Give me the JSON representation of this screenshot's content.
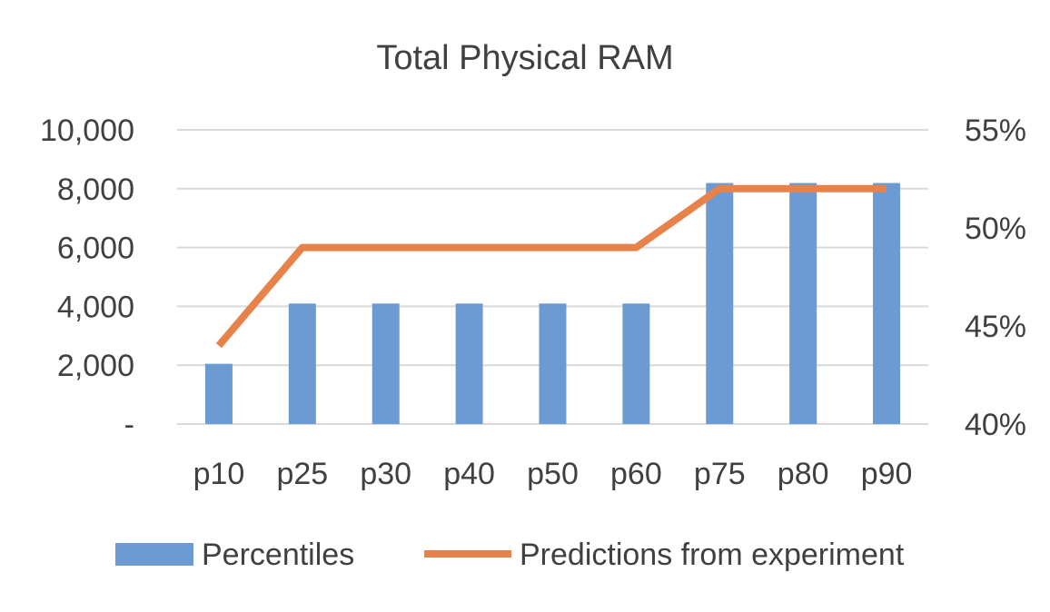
{
  "chart_data": {
    "type": "bar",
    "title": "Total Physical RAM",
    "categories": [
      "p10",
      "p25",
      "p30",
      "p40",
      "p50",
      "p60",
      "p75",
      "p80",
      "p90"
    ],
    "series": [
      {
        "name": "Percentiles",
        "type": "bar",
        "axis": "left",
        "color": "#6b9bd2",
        "values": [
          2048,
          4096,
          4096,
          4096,
          4096,
          4096,
          8192,
          8192,
          8192
        ]
      },
      {
        "name": "Predictions from experiment",
        "type": "line",
        "axis": "right",
        "color": "#e7834a",
        "values": [
          0.44,
          0.49,
          0.49,
          0.49,
          0.49,
          0.49,
          0.52,
          0.52,
          0.52
        ]
      }
    ],
    "y_left": {
      "min": 0,
      "max": 10000,
      "ticks": [
        0,
        2000,
        4000,
        6000,
        8000,
        10000
      ],
      "tick_labels": [
        "-",
        "2,000",
        "4,000",
        "6,000",
        "8,000",
        "10,000"
      ]
    },
    "y_right": {
      "min": 0.4,
      "max": 0.55,
      "ticks": [
        0.4,
        0.45,
        0.5,
        0.55
      ],
      "tick_labels": [
        "40%",
        "45%",
        "50%",
        "55%"
      ]
    },
    "grid": true,
    "legend_position": "bottom"
  }
}
